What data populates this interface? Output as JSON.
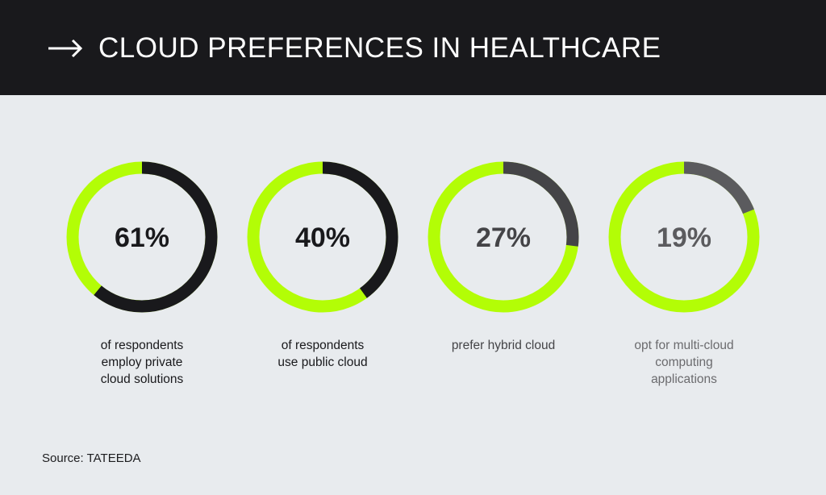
{
  "header": {
    "title": "CLOUD PREFERENCES IN HEALTHCARE",
    "arrow_icon": "right-arrow-icon"
  },
  "colors": {
    "header_bg": "#19191c",
    "page_bg": "#e8ebee",
    "ring_rest": "#b3fd06",
    "dark_segment": "#19191c",
    "gray_segment": "#444447"
  },
  "chart_data": {
    "type": "pie",
    "variant": "donut",
    "items": [
      {
        "value": 61,
        "label": "61%",
        "caption": [
          "of respondents",
          "employ private",
          "cloud solutions"
        ],
        "segment_color": "#19191c",
        "label_color": "#19191c",
        "caption_color": "#19191c"
      },
      {
        "value": 40,
        "label": "40%",
        "caption": [
          "of respondents",
          "use public cloud"
        ],
        "segment_color": "#19191c",
        "label_color": "#19191c",
        "caption_color": "#19191c"
      },
      {
        "value": 27,
        "label": "27%",
        "caption": [
          "prefer hybrid cloud"
        ],
        "segment_color": "#444447",
        "label_color": "#444447",
        "caption_color": "#444447"
      },
      {
        "value": 19,
        "label": "19%",
        "caption": [
          "opt for multi-cloud",
          "computing",
          "applications"
        ],
        "segment_color": "#5b5b5e",
        "label_color": "#5b5b5e",
        "caption_color": "#6b6b6e"
      }
    ]
  },
  "source": "Source: TATEEDA"
}
